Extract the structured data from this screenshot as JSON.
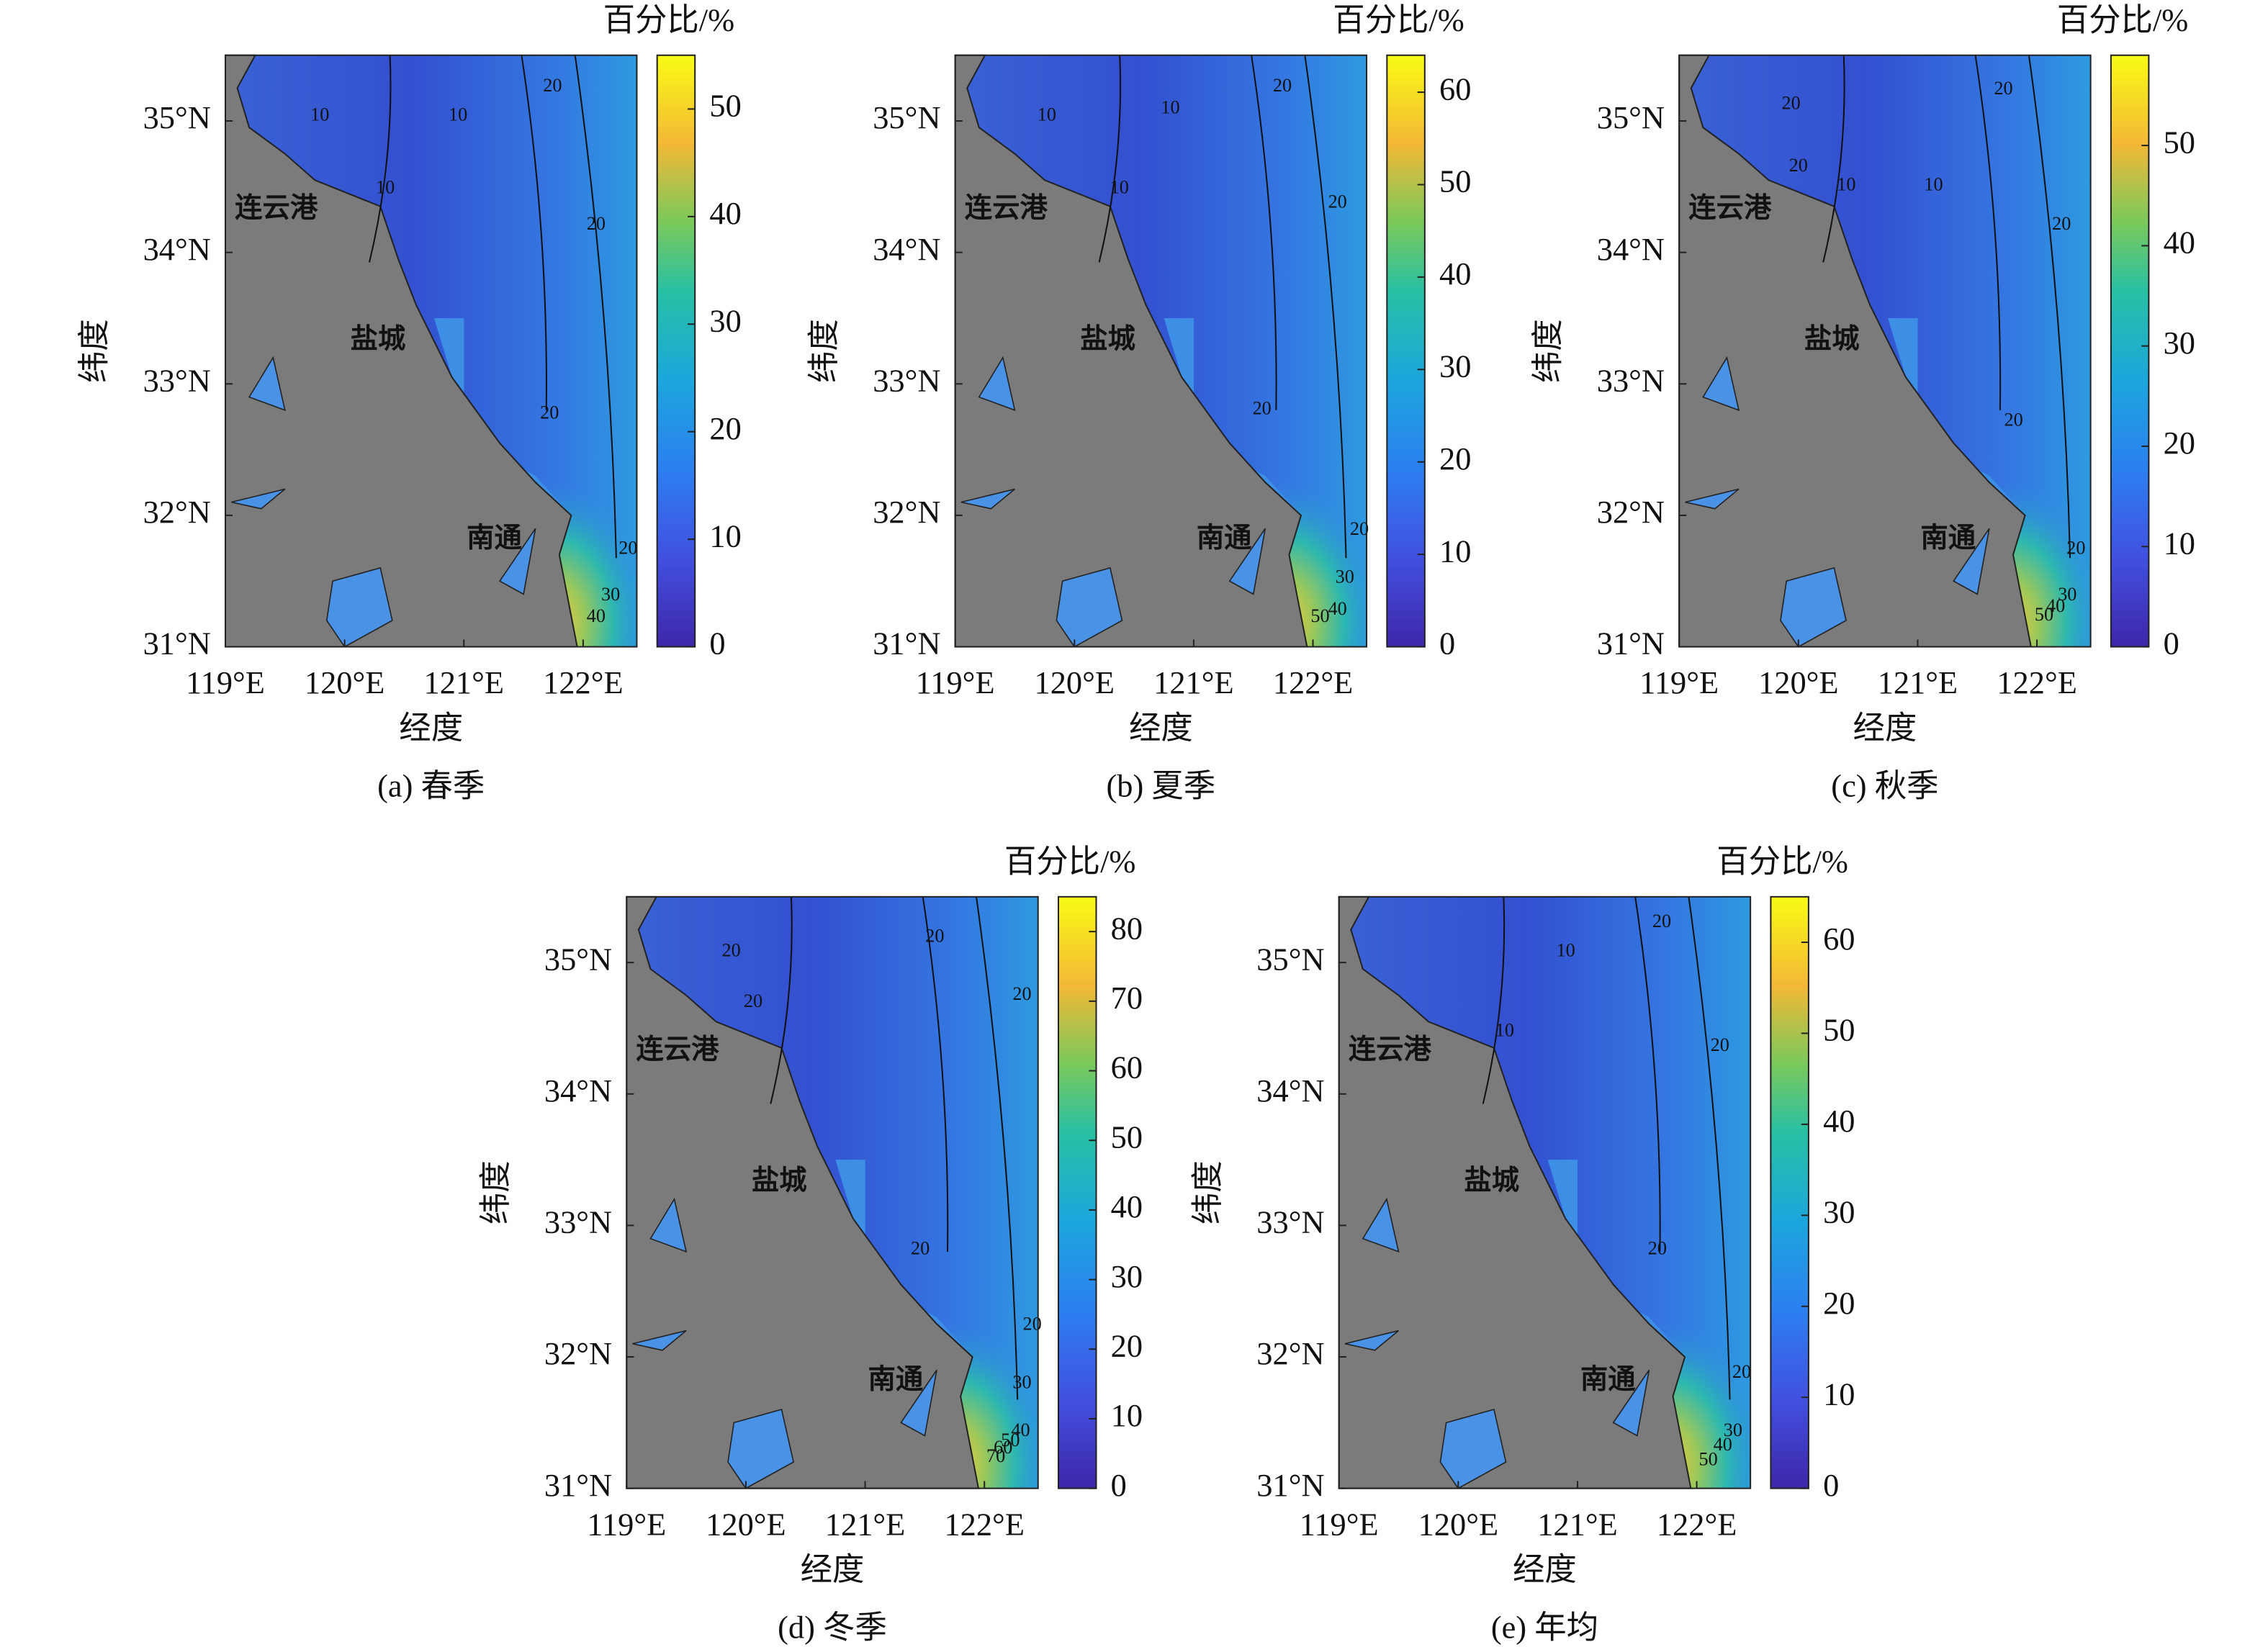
{
  "panels": [
    {
      "caption": "(a) 春季",
      "xlabel": "经度",
      "ylabel": "纬度",
      "xlim": [
        119,
        122.45
      ],
      "ylim": [
        31,
        35.5
      ],
      "xticks": [
        {
          "value": 119,
          "label": "119°E"
        },
        {
          "value": 120,
          "label": "120°E"
        },
        {
          "value": 121,
          "label": "121°E"
        },
        {
          "value": 122,
          "label": "122°E"
        }
      ],
      "yticks": [
        {
          "value": 31,
          "label": "31°N"
        },
        {
          "value": 32,
          "label": "32°N"
        },
        {
          "value": 33,
          "label": "33°N"
        },
        {
          "value": 34,
          "label": "34°N"
        },
        {
          "value": 35,
          "label": "35°N"
        }
      ],
      "colorbar": {
        "label": "百分比/%",
        "lim": [
          0,
          55
        ],
        "ticks": [
          0,
          10,
          20,
          30,
          40,
          50
        ]
      },
      "cities": [
        "连云港",
        "盐城",
        "南通"
      ],
      "contour_labels": [
        10,
        10,
        10,
        20,
        20,
        20,
        20,
        30,
        40
      ]
    },
    {
      "caption": "(b) 夏季",
      "xlabel": "经度",
      "ylabel": "纬度",
      "xlim": [
        119,
        122.45
      ],
      "ylim": [
        31,
        35.5
      ],
      "xticks": [
        {
          "value": 119,
          "label": "119°E"
        },
        {
          "value": 120,
          "label": "120°E"
        },
        {
          "value": 121,
          "label": "121°E"
        },
        {
          "value": 122,
          "label": "122°E"
        }
      ],
      "yticks": [
        {
          "value": 31,
          "label": "31°N"
        },
        {
          "value": 32,
          "label": "32°N"
        },
        {
          "value": 33,
          "label": "33°N"
        },
        {
          "value": 34,
          "label": "34°N"
        },
        {
          "value": 35,
          "label": "35°N"
        }
      ],
      "colorbar": {
        "label": "百分比/%",
        "lim": [
          0,
          64
        ],
        "ticks": [
          0,
          10,
          20,
          30,
          40,
          50,
          60
        ]
      },
      "cities": [
        "连云港",
        "盐城",
        "南通"
      ],
      "contour_labels": [
        10,
        10,
        10,
        20,
        20,
        20,
        20,
        30,
        40,
        50
      ]
    },
    {
      "caption": "(c) 秋季",
      "xlabel": "经度",
      "ylabel": "纬度",
      "xlim": [
        119,
        122.45
      ],
      "ylim": [
        31,
        35.5
      ],
      "xticks": [
        {
          "value": 119,
          "label": "119°E"
        },
        {
          "value": 120,
          "label": "120°E"
        },
        {
          "value": 121,
          "label": "121°E"
        },
        {
          "value": 122,
          "label": "122°E"
        }
      ],
      "yticks": [
        {
          "value": 31,
          "label": "31°N"
        },
        {
          "value": 32,
          "label": "32°N"
        },
        {
          "value": 33,
          "label": "33°N"
        },
        {
          "value": 34,
          "label": "34°N"
        },
        {
          "value": 35,
          "label": "35°N"
        }
      ],
      "colorbar": {
        "label": "百分比/%",
        "lim": [
          0,
          59
        ],
        "ticks": [
          0,
          10,
          20,
          30,
          40,
          50
        ]
      },
      "cities": [
        "连云港",
        "盐城",
        "南通"
      ],
      "contour_labels": [
        20,
        20,
        10,
        10,
        20,
        20,
        20,
        20,
        30,
        40,
        50
      ]
    },
    {
      "caption": "(d) 冬季",
      "xlabel": "经度",
      "ylabel": "纬度",
      "xlim": [
        119,
        122.45
      ],
      "ylim": [
        31,
        35.5
      ],
      "xticks": [
        {
          "value": 119,
          "label": "119°E"
        },
        {
          "value": 120,
          "label": "120°E"
        },
        {
          "value": 121,
          "label": "121°E"
        },
        {
          "value": 122,
          "label": "122°E"
        }
      ],
      "yticks": [
        {
          "value": 31,
          "label": "31°N"
        },
        {
          "value": 32,
          "label": "32°N"
        },
        {
          "value": 33,
          "label": "33°N"
        },
        {
          "value": 34,
          "label": "34°N"
        },
        {
          "value": 35,
          "label": "35°N"
        }
      ],
      "colorbar": {
        "label": "百分比/%",
        "lim": [
          0,
          85
        ],
        "ticks": [
          0,
          10,
          20,
          30,
          40,
          50,
          60,
          70,
          80
        ]
      },
      "cities": [
        "连云港",
        "盐城",
        "南通"
      ],
      "contour_labels": [
        20,
        20,
        20,
        20,
        20,
        20,
        30,
        40,
        50,
        60,
        70
      ]
    },
    {
      "caption": "(e) 年均",
      "xlabel": "经度",
      "ylabel": "纬度",
      "xlim": [
        119,
        122.45
      ],
      "ylim": [
        31,
        35.5
      ],
      "xticks": [
        {
          "value": 119,
          "label": "119°E"
        },
        {
          "value": 120,
          "label": "120°E"
        },
        {
          "value": 121,
          "label": "121°E"
        },
        {
          "value": 122,
          "label": "122°E"
        }
      ],
      "yticks": [
        {
          "value": 31,
          "label": "31°N"
        },
        {
          "value": 32,
          "label": "32°N"
        },
        {
          "value": 33,
          "label": "33°N"
        },
        {
          "value": 34,
          "label": "34°N"
        },
        {
          "value": 35,
          "label": "35°N"
        }
      ],
      "colorbar": {
        "label": "百分比/%",
        "lim": [
          0,
          65
        ],
        "ticks": [
          0,
          10,
          20,
          30,
          40,
          50,
          60
        ]
      },
      "cities": [
        "连云港",
        "盐城",
        "南通"
      ],
      "contour_labels": [
        10,
        10,
        20,
        20,
        20,
        20,
        30,
        40,
        50
      ]
    }
  ]
}
